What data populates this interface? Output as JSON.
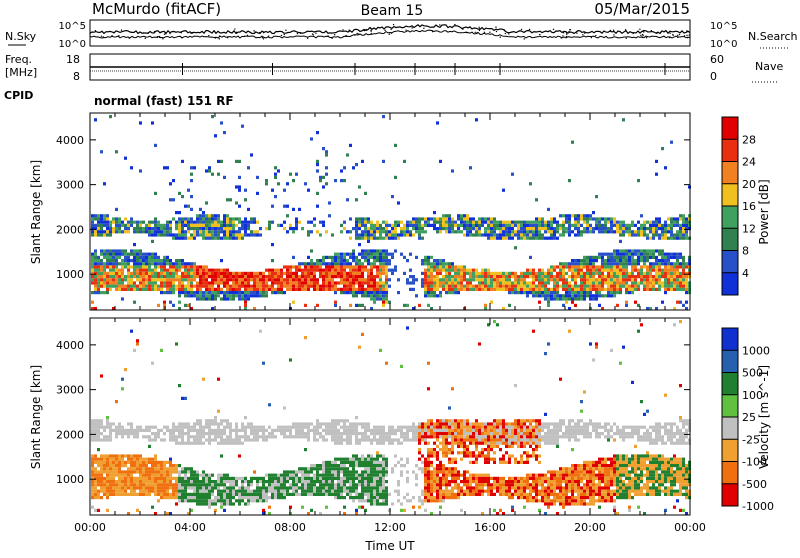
{
  "header": {
    "station": "McMurdo (fitACF)",
    "beam": "Beam 15",
    "date": "05/Mar/2015"
  },
  "status_panels": {
    "nsky_label": "N.Sky",
    "nsearch_label": "N.Search",
    "freq_label_1": "Freq.",
    "freq_label_2": "[MHz]",
    "nave_label": "Nave",
    "cpid_label": "CPID",
    "cpid_text": "normal (fast) 151 RF",
    "noise_left_ticks": [
      "10^5",
      "10^0"
    ],
    "noise_right_ticks": [
      "10^5",
      "10^0"
    ],
    "freq_left_ticks": [
      "18",
      "8"
    ],
    "nave_right_ticks": [
      "60",
      "0"
    ]
  },
  "chart_data": [
    {
      "type": "heatmap",
      "title": "",
      "xlabel": "",
      "ylabel": "Slant Range [km]",
      "colorbar_label": "Power [dB]",
      "xlim": [
        "00:00",
        "24:00"
      ],
      "ylim": [
        200,
        4600
      ],
      "y_ticks": [
        1000,
        2000,
        3000,
        4000
      ],
      "colorbar_ticks": [
        4,
        8,
        12,
        16,
        20,
        24,
        28
      ],
      "colors": [
        "#1030d8",
        "#2850c8",
        "#308050",
        "#40a060",
        "#f0c020",
        "#f08020",
        "#e83010",
        "#e00000"
      ],
      "bands": [
        {
          "t": [
            0,
            24
          ],
          "range_km": [
            600,
            1500
          ],
          "value_db": "20-30",
          "note": "strongest 04:00-11:30"
        },
        {
          "t": [
            0,
            24
          ],
          "range_km": [
            1900,
            2300
          ],
          "value_db": "8-20"
        },
        {
          "t": [
            3,
            11
          ],
          "range_km": [
            2500,
            3500
          ],
          "value_db": "4-12"
        }
      ]
    },
    {
      "type": "heatmap",
      "title": "",
      "xlabel": "Time UT",
      "ylabel": "Slant Range [km]",
      "colorbar_label": "Velocity [m s^-1]",
      "xlim": [
        "00:00",
        "24:00"
      ],
      "ylim": [
        200,
        4600
      ],
      "y_ticks": [
        1000,
        2000,
        3000,
        4000
      ],
      "x_ticks": [
        "00:00",
        "04:00",
        "08:00",
        "12:00",
        "16:00",
        "20:00",
        "00:00"
      ],
      "colorbar_ticks": [
        "1000",
        "500",
        "100",
        "25",
        "-25",
        "-100",
        "-500",
        "-1000"
      ],
      "colors": [
        "#1030d0",
        "#2860b0",
        "#208030",
        "#60c040",
        "#c0c0c0",
        "#f0a030",
        "#f07010",
        "#e00000"
      ],
      "bands": [
        {
          "t": [
            0,
            12
          ],
          "range_km": [
            600,
            1400
          ],
          "value_ms": "-100 to 100"
        },
        {
          "t": [
            13,
            21
          ],
          "range_km": [
            600,
            2300
          ],
          "value_ms": "-500 to -100"
        },
        {
          "t": [
            0,
            24
          ],
          "range_km": [
            1900,
            2400
          ],
          "value_ms": "-25 to 25"
        }
      ]
    }
  ]
}
